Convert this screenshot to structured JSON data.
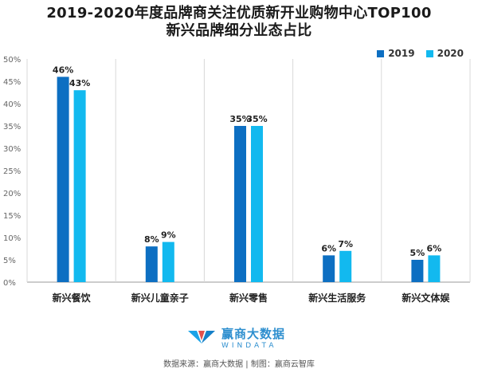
{
  "title_line1": "2019-2020年度品牌商关注优质新开业购物中心TOP100",
  "title_line2": "新兴品牌细分业态占比",
  "legend": {
    "s2019": "2019",
    "s2020": "2020"
  },
  "colors": {
    "s2019": "#0d6fc2",
    "s2020": "#12b9ef",
    "grid": "#d9d9d9",
    "axis": "#999999"
  },
  "logo": {
    "main": "赢商大数据",
    "sub": "WINDATA",
    "icon": "windata-logo-icon"
  },
  "source": "数据来源：赢商大数据 | 制图：赢商云智库",
  "chart_data": {
    "type": "bar",
    "categories": [
      "新兴餐饮",
      "新兴儿童亲子",
      "新兴零售",
      "新兴生活服务",
      "新兴文体娱"
    ],
    "series": [
      {
        "name": "2019",
        "values": [
          46,
          8,
          35,
          6,
          5
        ],
        "labels": [
          "46%",
          "8%",
          "35%",
          "6%",
          "5%"
        ]
      },
      {
        "name": "2020",
        "values": [
          43,
          9,
          35,
          7,
          6
        ],
        "labels": [
          "43%",
          "9%",
          "35%",
          "7%",
          "6%"
        ]
      }
    ],
    "yticks": [
      "0%",
      "5%",
      "10%",
      "15%",
      "20%",
      "25%",
      "30%",
      "35%",
      "40%",
      "45%",
      "50%"
    ],
    "ylim": [
      0,
      50
    ],
    "legend_position": "top-right",
    "grid": "vertical separators"
  }
}
